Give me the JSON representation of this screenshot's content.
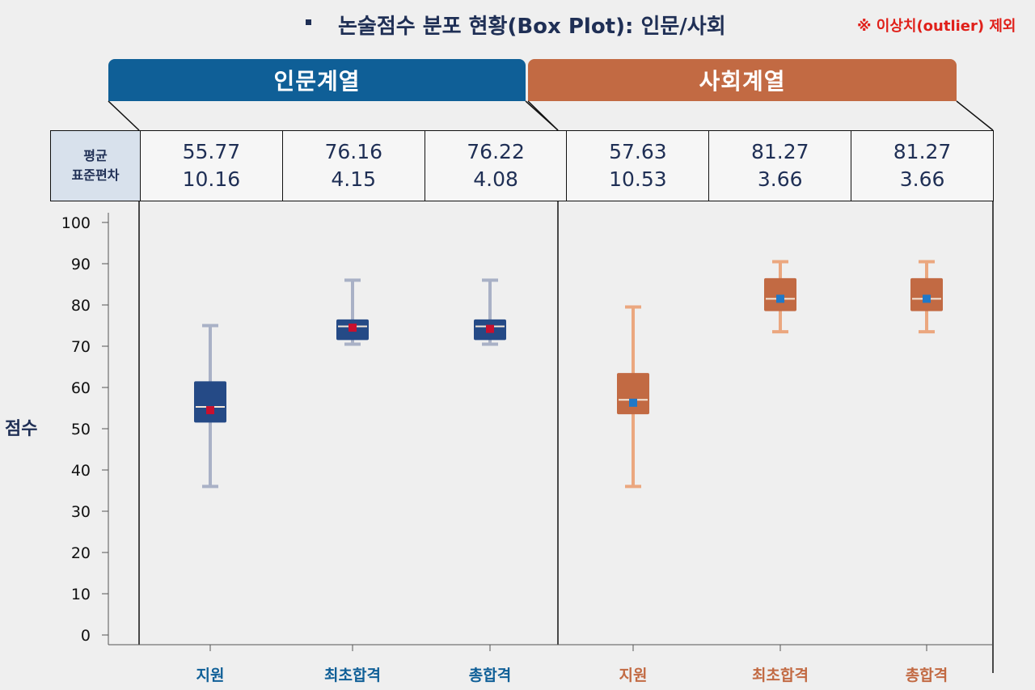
{
  "header": {
    "bullet": "▪",
    "title": "논술점수 분포 현황(Box Plot): 인문/사회",
    "note": "※ 이상치(outlier) 제외"
  },
  "groups": [
    {
      "label": "인문계열",
      "color": "#0f5f97"
    },
    {
      "label": "사회계열",
      "color": "#c26a43"
    }
  ],
  "stats": {
    "row_head_1": "평균",
    "row_head_2": "표준편차",
    "means": [
      "55.77",
      "76.16",
      "76.22",
      "57.63",
      "81.27",
      "81.27"
    ],
    "sds": [
      "10.16",
      "4.15",
      "4.08",
      "10.53",
      "3.66",
      "3.66"
    ]
  },
  "colors": {
    "humanities_box": "#254a86",
    "humanities_whisker": "#a9b1c6",
    "humanities_mean": "#c8102e",
    "social_box": "#c26a43",
    "social_whisker": "#eba77f",
    "social_mean": "#1f78c8"
  },
  "chart_data": {
    "type": "boxplot",
    "ylabel": "점수",
    "ylim": [
      0,
      100
    ],
    "yticks": [
      0,
      10,
      20,
      30,
      40,
      50,
      60,
      70,
      80,
      90,
      100
    ],
    "categories": [
      "지원",
      "최초합격",
      "총합격",
      "지원",
      "최초합격",
      "총합격"
    ],
    "series": [
      {
        "group": "인문계열",
        "boxes": [
          {
            "min": 36,
            "q1": 51.5,
            "median": 55.3,
            "q3": 61.5,
            "max": 75,
            "mean": 54.5
          },
          {
            "min": 70.5,
            "q1": 71.5,
            "median": 74.8,
            "q3": 76.5,
            "max": 86,
            "mean": 74.5
          },
          {
            "min": 70.5,
            "q1": 71.5,
            "median": 74.8,
            "q3": 76.5,
            "max": 86,
            "mean": 74.2
          }
        ]
      },
      {
        "group": "사회계열",
        "boxes": [
          {
            "min": 36,
            "q1": 53.5,
            "median": 57,
            "q3": 63.5,
            "max": 79.5,
            "mean": 56.3
          },
          {
            "min": 73.5,
            "q1": 78.5,
            "median": 81.5,
            "q3": 86.5,
            "max": 90.5,
            "mean": 81.5
          },
          {
            "min": 73.5,
            "q1": 78.5,
            "median": 81.5,
            "q3": 86.5,
            "max": 90.5,
            "mean": 81.5
          }
        ]
      }
    ]
  }
}
